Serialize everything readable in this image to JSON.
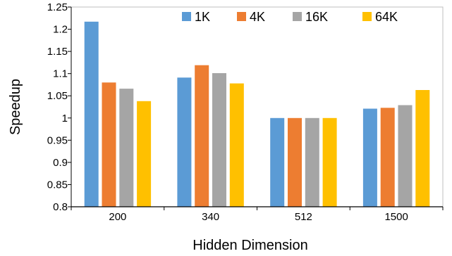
{
  "chart_data": {
    "type": "bar",
    "xlabel": "Hidden Dimension",
    "ylabel": "Speedup",
    "categories": [
      "200",
      "340",
      "512",
      "1500"
    ],
    "series": [
      {
        "name": "1K",
        "color": "#5b9bd5",
        "values": [
          1.217,
          1.091,
          1.0,
          1.021
        ]
      },
      {
        "name": "4K",
        "color": "#ed7d31",
        "values": [
          1.08,
          1.119,
          1.0,
          1.023
        ]
      },
      {
        "name": "16K",
        "color": "#a5a5a5",
        "values": [
          1.066,
          1.101,
          1.0,
          1.029
        ]
      },
      {
        "name": "64K",
        "color": "#ffc000",
        "values": [
          1.038,
          1.078,
          1.0,
          1.063
        ]
      }
    ],
    "ylim": [
      0.8,
      1.25
    ],
    "yticks": [
      "0.8",
      "0.85",
      "0.9",
      "0.95",
      "1",
      "1.05",
      "1.1",
      "1.15",
      "1.2",
      "1.25"
    ],
    "grid": false,
    "legend_position": "top-right"
  }
}
